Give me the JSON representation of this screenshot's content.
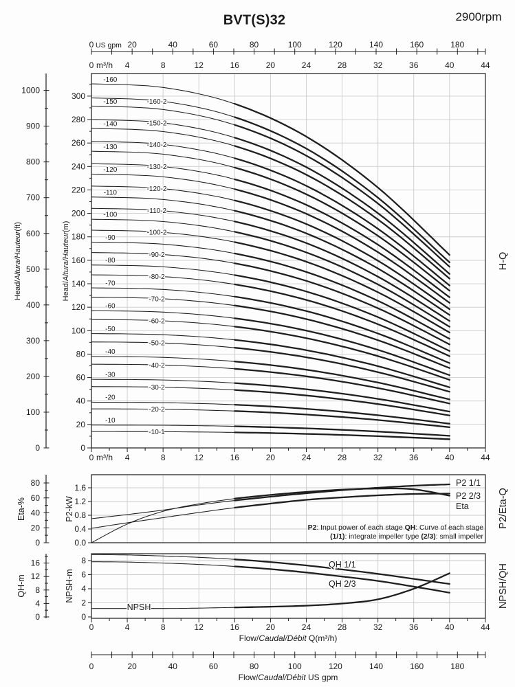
{
  "header": {
    "title": "BVT(S)32",
    "rpm": "2900rpm"
  },
  "labels": {
    "head_ft": {
      "p1": "Head/",
      "p2": "Altura/Hauteur",
      "p3": "(ft)"
    },
    "head_m": {
      "p1": "Head/",
      "p2": "Altura/Hauteur",
      "p3": "(m)"
    },
    "eta_axis": "Eta-%",
    "p2_axis": "P2-kW",
    "qh_axis": "QH-m",
    "npsh_axis": "NPSH-m",
    "right_hq": "H-Q",
    "right_p2": "P2/Eta-Q",
    "right_npsh": "NPSH/QH",
    "flow_m3h": {
      "p1": "Flow/",
      "p2": "Caudal/Débit",
      "p3": " Q(m³/h)"
    },
    "flow_gpm": {
      "p1": "Flow/",
      "p2": "Caudal/Débit",
      "p3": "  US gpm"
    }
  },
  "note": {
    "b1": "P2",
    "t1": ": Input power of each stage ",
    "b2": "QH",
    "t2": ": Curve of each stage",
    "b3": "(1/1)",
    "t3": ": integrate impeller type ",
    "b4": "(2/3)",
    "t4": ": small impeller"
  },
  "top_axes": {
    "gpm": {
      "zero": "0",
      "unit": "US gpm",
      "ticks": [
        20,
        40,
        60,
        80,
        100,
        120,
        140,
        160,
        180
      ],
      "minor_step": 10,
      "max_minor": 190
    },
    "m3h": {
      "zero": "0",
      "unit": "m³/h",
      "ticks": [
        4,
        8,
        12,
        16,
        20,
        24,
        28,
        32,
        36,
        40,
        44
      ]
    }
  },
  "chart_data": [
    {
      "type": "line",
      "id": "hq",
      "right_label": "H-Q",
      "x_axis": {
        "unit": "m³/h",
        "min": 0,
        "max": 44,
        "ticks": [
          0,
          4,
          8,
          12,
          16,
          20,
          24,
          28,
          32,
          36,
          40,
          44
        ],
        "minor_step": 2
      },
      "y_axis_m": {
        "unit": "m",
        "min": 0,
        "max": 319,
        "ticks": [
          0,
          20,
          40,
          60,
          80,
          100,
          120,
          140,
          160,
          180,
          200,
          220,
          240,
          260,
          280,
          300
        ],
        "minor_step": 10
      },
      "y_axis_ft": {
        "unit": "ft",
        "min": 0,
        "max": 1040,
        "ticks": [
          0,
          100,
          200,
          300,
          400,
          500,
          600,
          700,
          800,
          900,
          1000
        ],
        "minor_step": 50
      },
      "q_samples": [
        0,
        8,
        16,
        24,
        32,
        40
      ],
      "head_shape": [
        1.0,
        0.99,
        0.945,
        0.855,
        0.715,
        0.53
      ],
      "bold_from": 16,
      "curves": [
        {
          "label": "-10",
          "h0": 19.5
        },
        {
          "label": "-10-1",
          "h0": 14
        },
        {
          "label": "-20",
          "h0": 39
        },
        {
          "label": "-20-2",
          "h0": 33.3
        },
        {
          "label": "-30",
          "h0": 58.5
        },
        {
          "label": "-30-2",
          "h0": 52.3
        },
        {
          "label": "-40",
          "h0": 78
        },
        {
          "label": "-40-2",
          "h0": 71.4
        },
        {
          "label": "-50",
          "h0": 97.5
        },
        {
          "label": "-50-2",
          "h0": 90.4
        },
        {
          "label": "-60",
          "h0": 117
        },
        {
          "label": "-60-2",
          "h0": 109.5
        },
        {
          "label": "-70",
          "h0": 136.5
        },
        {
          "label": "-70-2",
          "h0": 128.5
        },
        {
          "label": "-80",
          "h0": 156
        },
        {
          "label": "-80-2",
          "h0": 147.6
        },
        {
          "label": "-90",
          "h0": 175.5
        },
        {
          "label": "-90-2",
          "h0": 166.6
        },
        {
          "label": "-100",
          "h0": 195
        },
        {
          "label": "-100-2",
          "h0": 185.7
        },
        {
          "label": "-110",
          "h0": 214
        },
        {
          "label": "-110-2",
          "h0": 204.3
        },
        {
          "label": "-120",
          "h0": 233.5
        },
        {
          "label": "-120-2",
          "h0": 223.3
        },
        {
          "label": "-130",
          "h0": 253
        },
        {
          "label": "-130-2",
          "h0": 242.4
        },
        {
          "label": "-140",
          "h0": 272.5
        },
        {
          "label": "-140-2",
          "h0": 261.4
        },
        {
          "label": "-150",
          "h0": 291.5
        },
        {
          "label": "-150-2",
          "h0": 280
        },
        {
          "label": "-160",
          "h0": 310.5
        },
        {
          "label": "-160-2",
          "h0": 298.5
        }
      ]
    },
    {
      "type": "line",
      "id": "p2eta",
      "right_label": "P2/Eta-Q",
      "y_axis_kw": {
        "label": "P2-kW",
        "ticks": [
          "0.0",
          "0.4",
          "0.8",
          "1.2",
          "1.6"
        ]
      },
      "y_axis_eta": {
        "label": "Eta-%",
        "ticks": [
          0,
          20,
          40,
          60,
          80
        ]
      },
      "x": [
        0,
        4,
        8,
        12,
        16,
        20,
        24,
        28,
        32,
        36,
        40
      ],
      "bold_from": 16,
      "series": [
        {
          "name": "P2 1/1",
          "axis": "kw",
          "values": [
            0.7,
            0.82,
            0.95,
            1.1,
            1.23,
            1.34,
            1.44,
            1.53,
            1.6,
            1.66,
            1.7
          ]
        },
        {
          "name": "P2 2/3",
          "axis": "kw",
          "values": [
            0.42,
            0.58,
            0.73,
            0.88,
            1.02,
            1.14,
            1.25,
            1.32,
            1.38,
            1.42,
            1.43
          ]
        },
        {
          "name": "Eta",
          "axis": "eta",
          "values": [
            0,
            25,
            42,
            52,
            59,
            64,
            68,
            71,
            72.5,
            71.5,
            63
          ]
        }
      ]
    },
    {
      "type": "line",
      "id": "npshqh",
      "right_label": "NPSH/QH",
      "y_axis_qh": {
        "label": "QH-m",
        "ticks": [
          0,
          4,
          8,
          12,
          16
        ],
        "minor_step": 2
      },
      "y_axis_npsh": {
        "label": "NPSH-m",
        "ticks": [
          0,
          2,
          4,
          6,
          8
        ]
      },
      "x": [
        0,
        4,
        8,
        12,
        16,
        20,
        24,
        28,
        32,
        36,
        40
      ],
      "x_ticks": [
        0,
        4,
        8,
        12,
        16,
        20,
        24,
        28,
        32,
        36,
        40,
        44
      ],
      "bold_from": 16,
      "series": [
        {
          "name": "QH 1/1",
          "axis": "qh",
          "values": [
            18.5,
            18.4,
            18.1,
            17.7,
            17.1,
            16.3,
            15.3,
            14.1,
            12.8,
            11.3,
            9.8
          ]
        },
        {
          "name": "QH 2/3",
          "axis": "qh",
          "values": [
            16.4,
            16.3,
            16.0,
            15.6,
            15.0,
            14.2,
            13.2,
            12.0,
            10.7,
            9.0,
            7.2
          ]
        },
        {
          "name": "NPSH",
          "axis": "npsh",
          "values": [
            1.2,
            1.2,
            1.2,
            1.25,
            1.35,
            1.45,
            1.6,
            1.9,
            2.5,
            4.0,
            6.2
          ]
        }
      ]
    }
  ],
  "bottom_gpm_axis": {
    "ticks": [
      0,
      20,
      40,
      60,
      80,
      100,
      120,
      140,
      160,
      180
    ],
    "minor_step": 10,
    "max_minor": 190
  }
}
